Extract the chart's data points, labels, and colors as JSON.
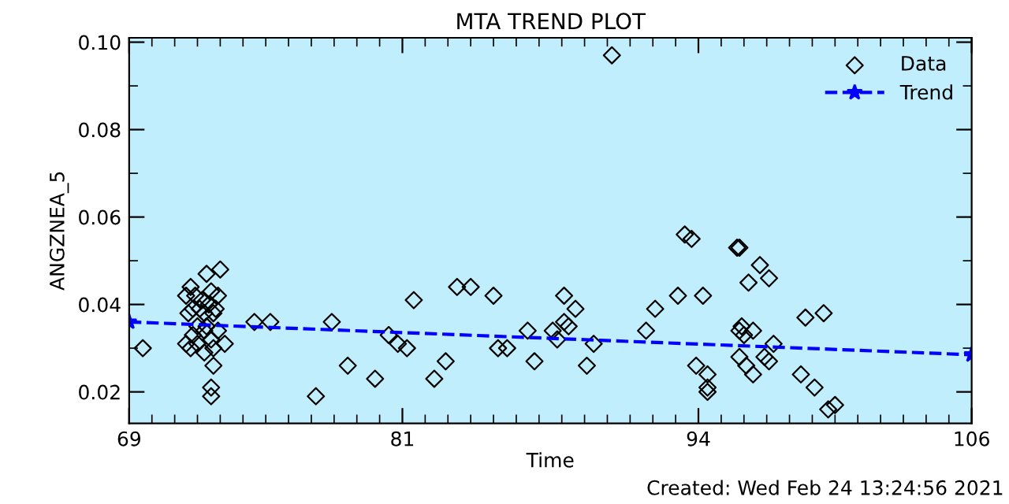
{
  "chart_data": {
    "type": "scatter",
    "title": "MTA TREND PLOT",
    "xlabel": "Time",
    "ylabel": "ANGZNEA_5",
    "annotations": [
      "Created: Wed Feb 24 13:24:56 2021"
    ],
    "xlim": [
      69,
      106
    ],
    "xticks": [
      69,
      81,
      94,
      106
    ],
    "ylim": [
      0.0128,
      0.101
    ],
    "yticks": [
      {
        "value": 0.02,
        "label": "0.02"
      },
      {
        "value": 0.04,
        "label": "0.04"
      },
      {
        "value": 0.06,
        "label": "0.06"
      },
      {
        "value": 0.08,
        "label": "0.08"
      },
      {
        "value": 0.1,
        "label": "0.10"
      }
    ],
    "grid": false,
    "legend": "top right",
    "series": [
      {
        "name": "Data",
        "marker": "diamond",
        "color": "#000000",
        "x": [
          69.6,
          71.7,
          72.4,
          73.0,
          71.5,
          71.9,
          72.2,
          72.6,
          72.9,
          71.8,
          72.1,
          72.5,
          72.8,
          71.6,
          72.3,
          72.7,
          71.5,
          71.8,
          72.0,
          72.3,
          72.6,
          72.9,
          73.2,
          71.7,
          72.3,
          72.7,
          72.4,
          72.0,
          72.7,
          72.6,
          72.6,
          74.5,
          75.2,
          77.2,
          77.9,
          78.6,
          79.8,
          80.4,
          80.8,
          81.5,
          81.2,
          82.4,
          82.9,
          83.4,
          84.0,
          85.0,
          85.2,
          85.6,
          86.5,
          86.8,
          87.6,
          87.8,
          88.1,
          88.1,
          88.3,
          88.6,
          89.1,
          89.4,
          90.2,
          91.7,
          92.1,
          93.1,
          93.4,
          93.7,
          93.9,
          94.2,
          94.4,
          94.4,
          94.4,
          95.7,
          95.8,
          95.8,
          95.8,
          95.9,
          96.0,
          96.4,
          96.2,
          96.7,
          97.1,
          96.1,
          96.4,
          96.9,
          97.1,
          97.3,
          98.5,
          98.7,
          99.1,
          99.5,
          99.7,
          100.0
        ],
        "values": [
          0.03,
          0.044,
          0.047,
          0.048,
          0.042,
          0.042,
          0.041,
          0.043,
          0.042,
          0.039,
          0.039,
          0.04,
          0.039,
          0.038,
          0.038,
          0.038,
          0.031,
          0.033,
          0.031,
          0.034,
          0.032,
          0.034,
          0.031,
          0.03,
          0.029,
          0.03,
          0.035,
          0.035,
          0.026,
          0.021,
          0.019,
          0.036,
          0.036,
          0.019,
          0.036,
          0.026,
          0.023,
          0.033,
          0.031,
          0.041,
          0.03,
          0.023,
          0.027,
          0.044,
          0.044,
          0.042,
          0.03,
          0.03,
          0.034,
          0.027,
          0.034,
          0.032,
          0.042,
          0.036,
          0.035,
          0.039,
          0.026,
          0.031,
          0.097,
          0.034,
          0.039,
          0.042,
          0.056,
          0.055,
          0.026,
          0.042,
          0.024,
          0.021,
          0.02,
          0.053,
          0.053,
          0.034,
          0.028,
          0.035,
          0.033,
          0.034,
          0.045,
          0.049,
          0.046,
          0.026,
          0.024,
          0.028,
          0.027,
          0.031,
          0.024,
          0.037,
          0.021,
          0.038,
          0.016,
          0.017
        ]
      },
      {
        "name": "Trend",
        "type": "line",
        "marker": "star",
        "line_style": "dashed",
        "color": "#0000ff",
        "x": [
          69,
          106
        ],
        "values": [
          0.036,
          0.0285
        ]
      }
    ]
  }
}
